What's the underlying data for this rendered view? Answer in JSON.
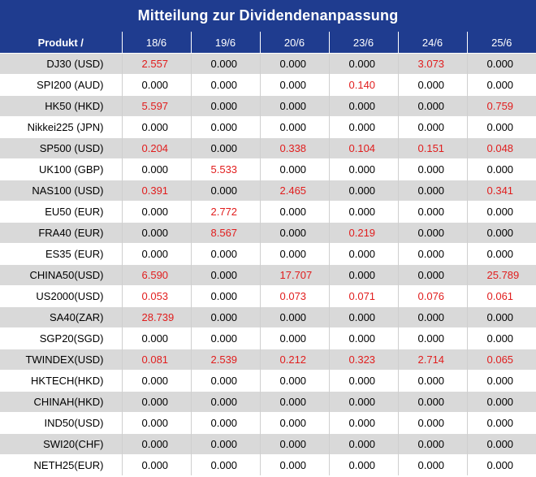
{
  "title": "Mitteilung zur Dividendenanpassung",
  "header": {
    "product_label": "Produkt /",
    "dates": [
      "18/6",
      "19/6",
      "20/6",
      "23/6",
      "24/6",
      "25/6"
    ]
  },
  "rows": [
    {
      "product": "DJ30 (USD)",
      "values": [
        "2.557",
        "0.000",
        "0.000",
        "0.000",
        "3.073",
        "0.000"
      ]
    },
    {
      "product": "SPI200 (AUD)",
      "values": [
        "0.000",
        "0.000",
        "0.000",
        "0.140",
        "0.000",
        "0.000"
      ]
    },
    {
      "product": "HK50 (HKD)",
      "values": [
        "5.597",
        "0.000",
        "0.000",
        "0.000",
        "0.000",
        "0.759"
      ]
    },
    {
      "product": "Nikkei225 (JPN)",
      "values": [
        "0.000",
        "0.000",
        "0.000",
        "0.000",
        "0.000",
        "0.000"
      ]
    },
    {
      "product": "SP500 (USD)",
      "values": [
        "0.204",
        "0.000",
        "0.338",
        "0.104",
        "0.151",
        "0.048"
      ]
    },
    {
      "product": "UK100 (GBP)",
      "values": [
        "0.000",
        "5.533",
        "0.000",
        "0.000",
        "0.000",
        "0.000"
      ]
    },
    {
      "product": "NAS100 (USD)",
      "values": [
        "0.391",
        "0.000",
        "2.465",
        "0.000",
        "0.000",
        "0.341"
      ]
    },
    {
      "product": "EU50 (EUR)",
      "values": [
        "0.000",
        "2.772",
        "0.000",
        "0.000",
        "0.000",
        "0.000"
      ]
    },
    {
      "product": "FRA40 (EUR)",
      "values": [
        "0.000",
        "8.567",
        "0.000",
        "0.219",
        "0.000",
        "0.000"
      ]
    },
    {
      "product": "ES35 (EUR)",
      "values": [
        "0.000",
        "0.000",
        "0.000",
        "0.000",
        "0.000",
        "0.000"
      ]
    },
    {
      "product": "CHINA50(USD)",
      "values": [
        "6.590",
        "0.000",
        "17.707",
        "0.000",
        "0.000",
        "25.789"
      ]
    },
    {
      "product": "US2000(USD)",
      "values": [
        "0.053",
        "0.000",
        "0.073",
        "0.071",
        "0.076",
        "0.061"
      ]
    },
    {
      "product": "SA40(ZAR)",
      "values": [
        "28.739",
        "0.000",
        "0.000",
        "0.000",
        "0.000",
        "0.000"
      ]
    },
    {
      "product": "SGP20(SGD)",
      "values": [
        "0.000",
        "0.000",
        "0.000",
        "0.000",
        "0.000",
        "0.000"
      ]
    },
    {
      "product": "TWINDEX(USD)",
      "values": [
        "0.081",
        "2.539",
        "0.212",
        "0.323",
        "2.714",
        "0.065"
      ]
    },
    {
      "product": "HKTECH(HKD)",
      "values": [
        "0.000",
        "0.000",
        "0.000",
        "0.000",
        "0.000",
        "0.000"
      ]
    },
    {
      "product": "CHINAH(HKD)",
      "values": [
        "0.000",
        "0.000",
        "0.000",
        "0.000",
        "0.000",
        "0.000"
      ]
    },
    {
      "product": "IND50(USD)",
      "values": [
        "0.000",
        "0.000",
        "0.000",
        "0.000",
        "0.000",
        "0.000"
      ]
    },
    {
      "product": "SWI20(CHF)",
      "values": [
        "0.000",
        "0.000",
        "0.000",
        "0.000",
        "0.000",
        "0.000"
      ]
    },
    {
      "product": "NETH25(EUR)",
      "values": [
        "0.000",
        "0.000",
        "0.000",
        "0.000",
        "0.000",
        "0.000"
      ]
    }
  ],
  "colors": {
    "header_bg": "#1f3c8f",
    "nonzero_value": "#e11d1d",
    "zero_value": "#000000",
    "stripe": "#d9d9d9"
  }
}
